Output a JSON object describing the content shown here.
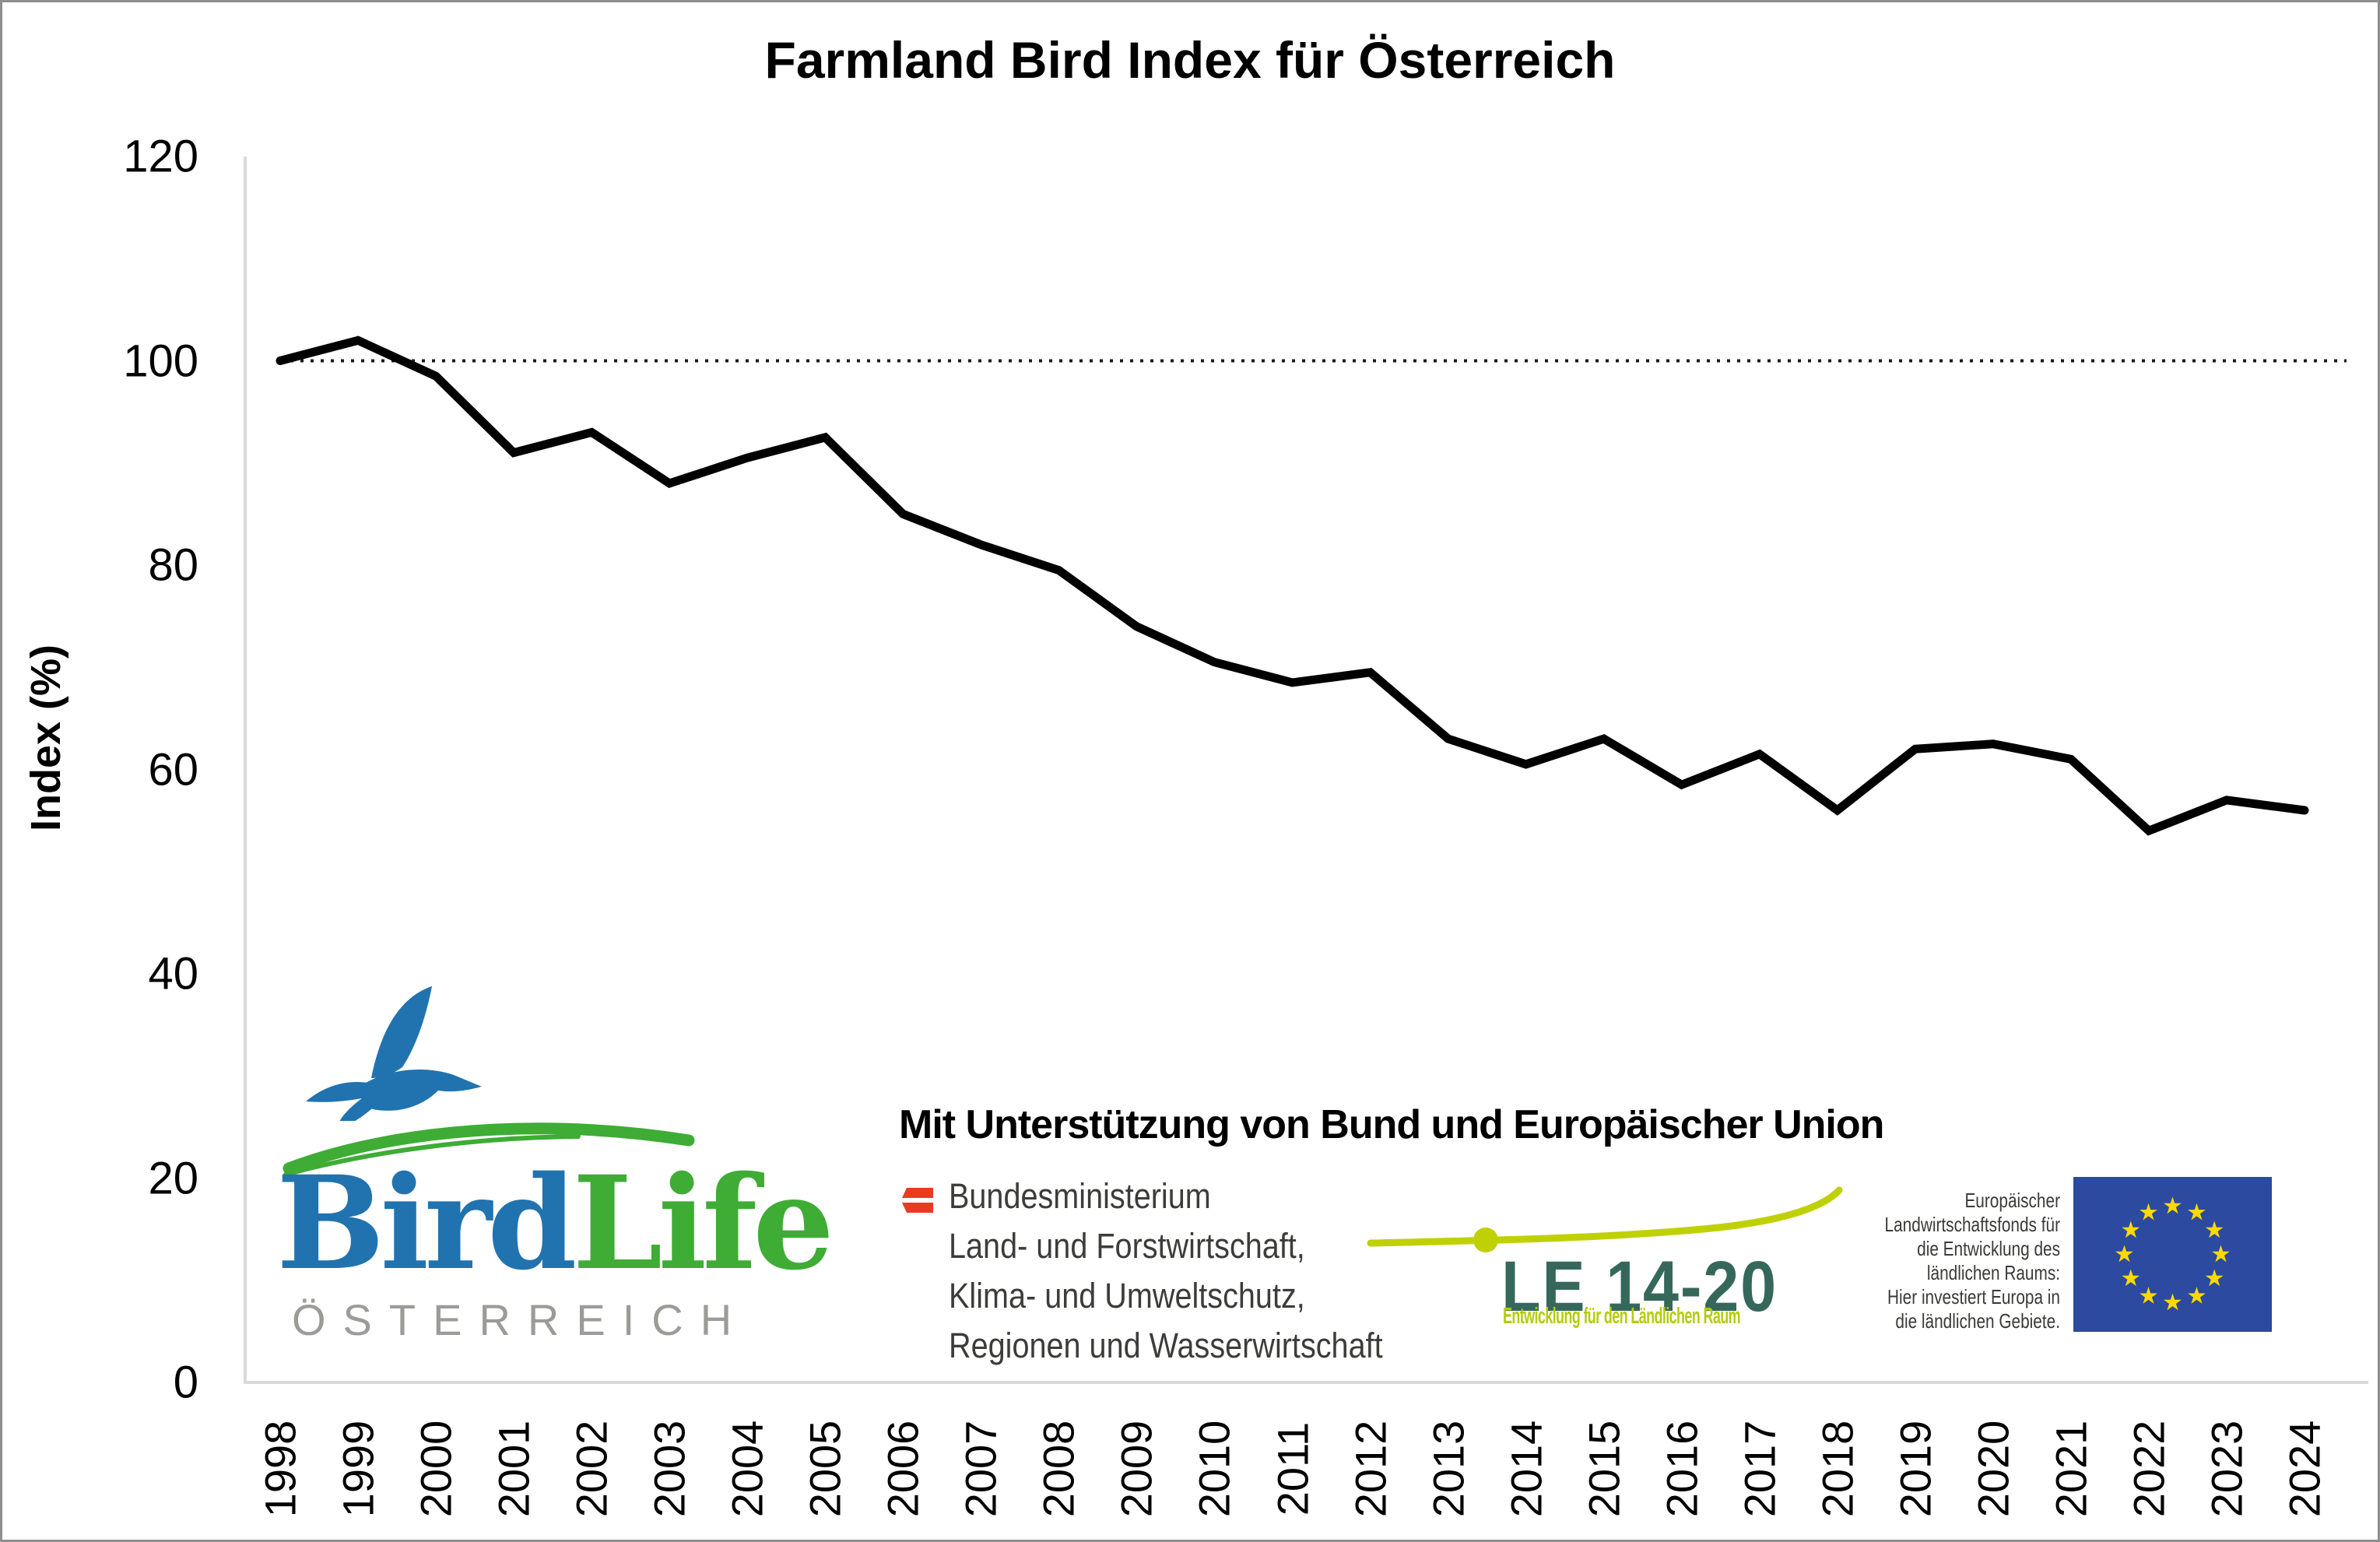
{
  "chart_data": {
    "type": "line",
    "title": "Farmland Bird Index für Österreich",
    "ylabel": "Index (%)",
    "x": [
      1998,
      1999,
      2000,
      2001,
      2002,
      2003,
      2004,
      2005,
      2006,
      2007,
      2008,
      2009,
      2010,
      2011,
      2012,
      2013,
      2014,
      2015,
      2016,
      2017,
      2018,
      2019,
      2020,
      2021,
      2022,
      2023,
      2024
    ],
    "values": [
      100,
      102,
      98.5,
      91,
      93,
      88,
      90.5,
      92.5,
      85,
      82,
      79.5,
      74,
      70.5,
      68.5,
      69.5,
      63,
      60.5,
      63,
      58.5,
      61.5,
      56,
      62,
      62.5,
      61,
      54,
      57,
      56
    ],
    "yticks": [
      120,
      100,
      80,
      60,
      40,
      20,
      0
    ],
    "ylim": [
      0,
      120
    ],
    "reference_line": 100,
    "grid": "off",
    "legend": "none",
    "line_color": "#000000",
    "reference_line_style": "dotted",
    "axis_color": "#D9D9D9"
  },
  "birdlife": {
    "word_bird": "Bird",
    "word_life": "Life",
    "subtitle": "ÖSTERREICH",
    "blue": "#2173AF",
    "green": "#3EAC35",
    "gray": "#9B9B97"
  },
  "support": {
    "heading": "Mit Unterstützung von Bund und Europäischer Union",
    "ministry": {
      "name": "Bundesministerium",
      "line2": "Land- und Forstwirtschaft,",
      "line3": "Klima- und Umweltschutz,",
      "line4": "Regionen und Wasserwirtschaft",
      "flag_red": "#EA3A23"
    },
    "le": {
      "title": "LE 14-20",
      "subtitle": "Entwicklung für den Ländlichen Raum",
      "accent": "#BFD104",
      "title_color": "#35685B"
    },
    "eu": {
      "line1": "Europäischer",
      "line2": "Landwirtschaftsfonds für",
      "line3": "die Entwicklung des",
      "line4": "ländlichen Raums:",
      "line5": "Hier investiert Europa in",
      "line6": "die ländlichen Gebiete.",
      "flag_blue": "#2B4AA0",
      "star_yellow": "#FFD900",
      "star_count": 12
    }
  }
}
